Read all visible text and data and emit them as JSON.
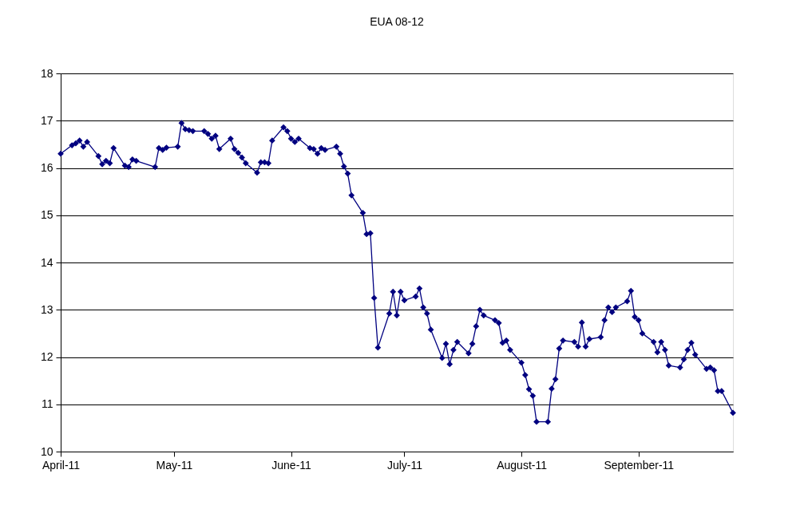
{
  "chart_data": {
    "type": "line",
    "title": "EUA 08-12",
    "color": "#000080",
    "marker": "diamond",
    "line_style": "solid",
    "grid": "y",
    "xlim": [
      "2011-04-01",
      "2011-09-26"
    ],
    "xticks": [
      {
        "value": "2011-04-01",
        "label": "April-11"
      },
      {
        "value": "2011-05-01",
        "label": "May-11"
      },
      {
        "value": "2011-06-01",
        "label": "June-11"
      },
      {
        "value": "2011-07-01",
        "label": "July-11"
      },
      {
        "value": "2011-08-01",
        "label": "August-11"
      },
      {
        "value": "2011-09-01",
        "label": "September-11"
      }
    ],
    "ylim": [
      10,
      18
    ],
    "yticks": [
      10,
      11,
      12,
      13,
      14,
      15,
      16,
      17,
      18
    ],
    "x": [
      "2011-04-01",
      "2011-04-04",
      "2011-04-05",
      "2011-04-06",
      "2011-04-07",
      "2011-04-08",
      "2011-04-11",
      "2011-04-12",
      "2011-04-13",
      "2011-04-14",
      "2011-04-15",
      "2011-04-18",
      "2011-04-19",
      "2011-04-20",
      "2011-04-21",
      "2011-04-26",
      "2011-04-27",
      "2011-04-28",
      "2011-04-29",
      "2011-05-02",
      "2011-05-03",
      "2011-05-04",
      "2011-05-05",
      "2011-05-06",
      "2011-05-09",
      "2011-05-10",
      "2011-05-11",
      "2011-05-12",
      "2011-05-13",
      "2011-05-16",
      "2011-05-17",
      "2011-05-18",
      "2011-05-19",
      "2011-05-20",
      "2011-05-23",
      "2011-05-24",
      "2011-05-25",
      "2011-05-26",
      "2011-05-27",
      "2011-05-30",
      "2011-05-31",
      "2011-06-01",
      "2011-06-02",
      "2011-06-03",
      "2011-06-06",
      "2011-06-07",
      "2011-06-08",
      "2011-06-09",
      "2011-06-10",
      "2011-06-13",
      "2011-06-14",
      "2011-06-15",
      "2011-06-16",
      "2011-06-17",
      "2011-06-20",
      "2011-06-21",
      "2011-06-22",
      "2011-06-23",
      "2011-06-24",
      "2011-06-27",
      "2011-06-28",
      "2011-06-29",
      "2011-06-30",
      "2011-07-01",
      "2011-07-04",
      "2011-07-05",
      "2011-07-06",
      "2011-07-07",
      "2011-07-08",
      "2011-07-11",
      "2011-07-12",
      "2011-07-13",
      "2011-07-14",
      "2011-07-15",
      "2011-07-18",
      "2011-07-19",
      "2011-07-20",
      "2011-07-21",
      "2011-07-22",
      "2011-07-25",
      "2011-07-26",
      "2011-07-27",
      "2011-07-28",
      "2011-07-29",
      "2011-08-01",
      "2011-08-02",
      "2011-08-03",
      "2011-08-04",
      "2011-08-05",
      "2011-08-08",
      "2011-08-09",
      "2011-08-10",
      "2011-08-11",
      "2011-08-12",
      "2011-08-15",
      "2011-08-16",
      "2011-08-17",
      "2011-08-18",
      "2011-08-19",
      "2011-08-22",
      "2011-08-23",
      "2011-08-24",
      "2011-08-25",
      "2011-08-26",
      "2011-08-29",
      "2011-08-30",
      "2011-08-31",
      "2011-09-01",
      "2011-09-02",
      "2011-09-05",
      "2011-09-06",
      "2011-09-07",
      "2011-09-08",
      "2011-09-09",
      "2011-09-12",
      "2011-09-13",
      "2011-09-14",
      "2011-09-15",
      "2011-09-16",
      "2011-09-19",
      "2011-09-20",
      "2011-09-21",
      "2011-09-22",
      "2011-09-23",
      "2011-09-26"
    ],
    "values": [
      16.3,
      16.48,
      16.52,
      16.58,
      16.45,
      16.55,
      16.25,
      16.08,
      16.15,
      16.1,
      16.42,
      16.05,
      16.02,
      16.18,
      16.15,
      16.02,
      16.42,
      16.38,
      16.43,
      16.45,
      16.95,
      16.82,
      16.8,
      16.78,
      16.78,
      16.72,
      16.62,
      16.68,
      16.4,
      16.62,
      16.4,
      16.32,
      16.22,
      16.1,
      15.9,
      16.12,
      16.12,
      16.1,
      16.58,
      16.86,
      16.78,
      16.62,
      16.55,
      16.62,
      16.42,
      16.4,
      16.3,
      16.42,
      16.38,
      16.45,
      16.3,
      16.03,
      15.88,
      15.42,
      15.05,
      14.6,
      14.62,
      13.25,
      12.2,
      12.92,
      13.38,
      12.88,
      13.38,
      13.2,
      13.28,
      13.45,
      13.05,
      12.92,
      12.58,
      11.98,
      12.28,
      11.85,
      12.15,
      12.32,
      12.08,
      12.28,
      12.65,
      13.0,
      12.88,
      12.78,
      12.72,
      12.3,
      12.35,
      12.15,
      11.88,
      11.62,
      11.32,
      11.18,
      10.63,
      10.63,
      11.33,
      11.53,
      12.18,
      12.35,
      12.32,
      12.22,
      12.73,
      12.22,
      12.38,
      12.42,
      12.78,
      13.05,
      12.95,
      13.05,
      13.18,
      13.4,
      12.85,
      12.78,
      12.5,
      12.32,
      12.1,
      12.32,
      12.15,
      11.82,
      11.78,
      11.95,
      12.15,
      12.3,
      12.05,
      11.75,
      11.78,
      11.72,
      11.28,
      11.28,
      10.82
    ]
  }
}
